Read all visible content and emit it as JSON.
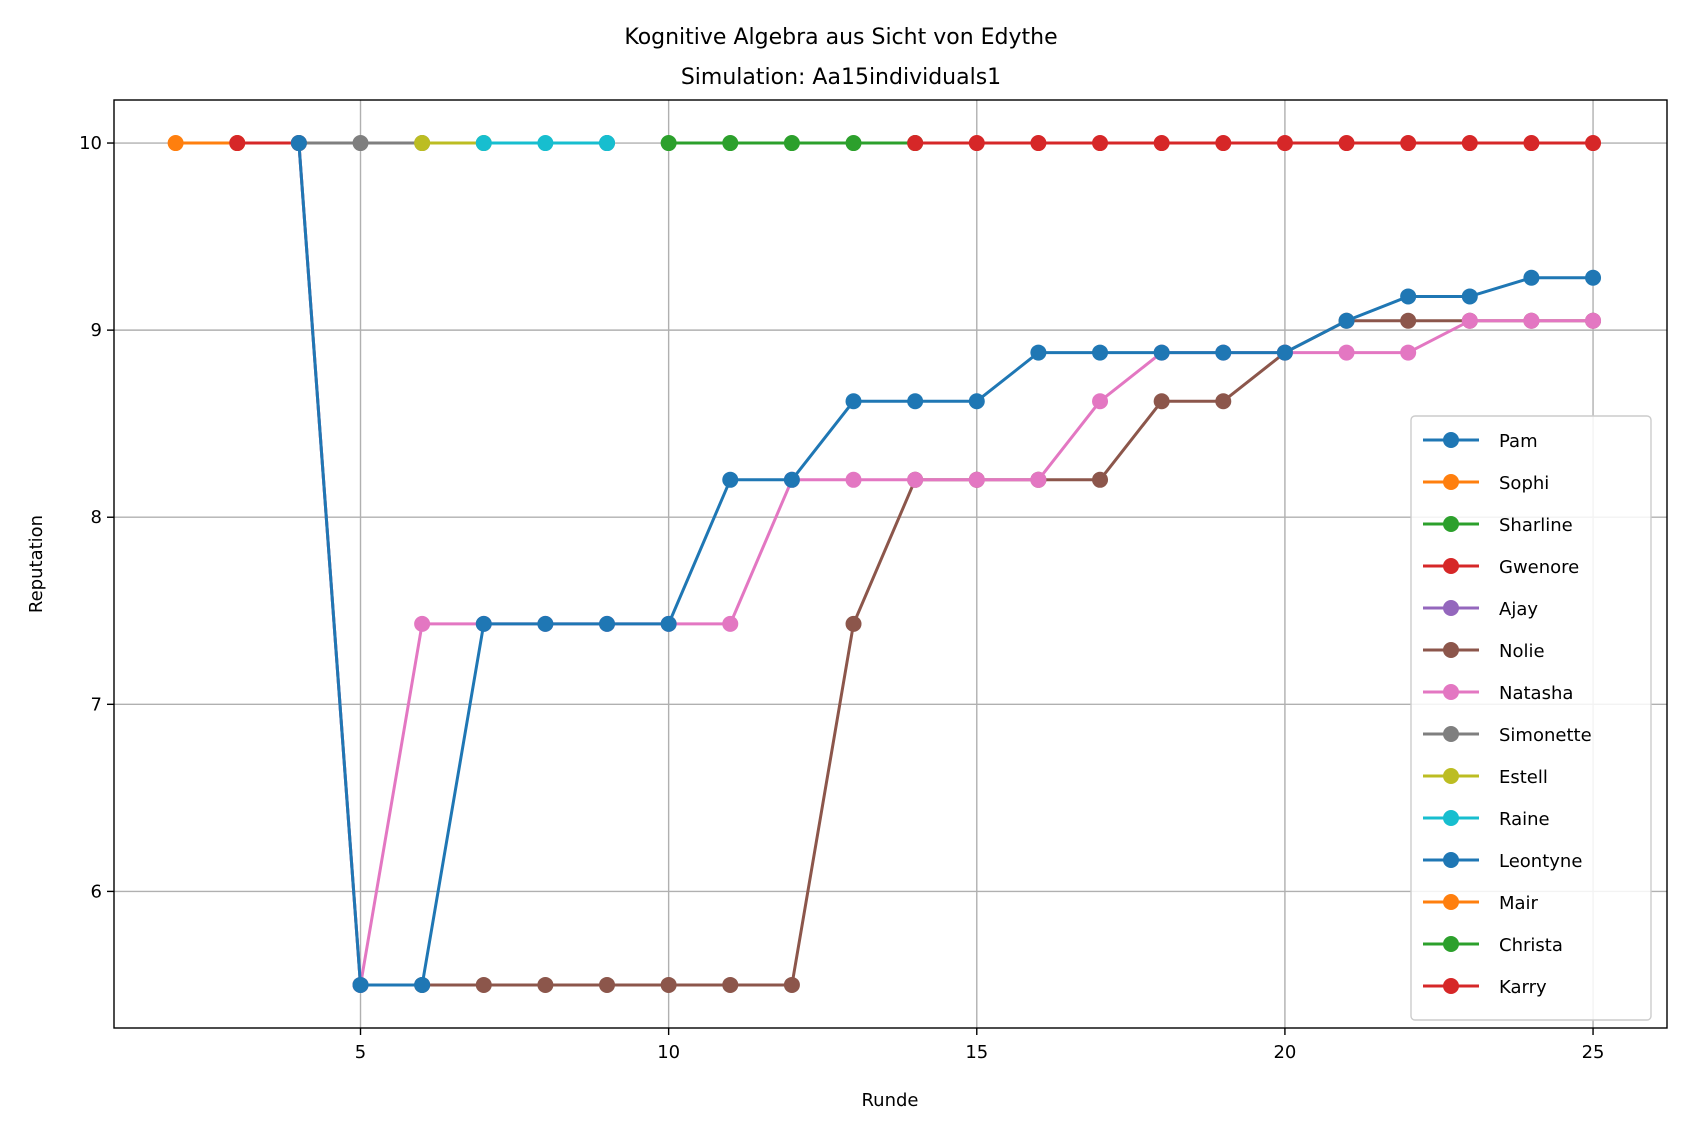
{
  "chart_data": {
    "type": "line",
    "title": "Kognitive Algebra aus Sicht von Edythe",
    "subtitle": "Simulation: Aa15individuals1",
    "xlabel": "Runde",
    "ylabel": "Reputation",
    "xlim": [
      1,
      26.2
    ],
    "ylim": [
      5.27,
      10.23
    ],
    "xticks": [
      5,
      10,
      15,
      20,
      25
    ],
    "yticks": [
      6,
      7,
      8,
      9,
      10
    ],
    "grid": true,
    "legend_position": "right",
    "series": [
      {
        "name": "Pam",
        "color": "#1f77b4",
        "x": [
          9
        ],
        "y": [
          10
        ]
      },
      {
        "name": "Sophi",
        "color": "#ff7f0e",
        "x": [
          2,
          3
        ],
        "y": [
          10,
          10
        ]
      },
      {
        "name": "Sharline",
        "color": "#2ca02c",
        "x": [
          10,
          11,
          12,
          13,
          14
        ],
        "y": [
          10,
          10,
          10,
          10,
          10
        ]
      },
      {
        "name": "Gwenore",
        "color": "#d62728",
        "x": [
          3,
          4
        ],
        "y": [
          10,
          10
        ]
      },
      {
        "name": "Ajay",
        "color": "#9467bd",
        "x": [],
        "y": []
      },
      {
        "name": "Nolie",
        "color": "#8c564b",
        "x": [
          4,
          5,
          6,
          7,
          8,
          9,
          10,
          11,
          12,
          13,
          14,
          15,
          16,
          17,
          18,
          19,
          20,
          21,
          22,
          23,
          24,
          25
        ],
        "y": [
          10,
          5.5,
          5.5,
          5.5,
          5.5,
          5.5,
          5.5,
          5.5,
          5.5,
          7.43,
          8.2,
          8.2,
          8.2,
          8.2,
          8.62,
          8.62,
          8.88,
          9.05,
          9.05,
          9.05,
          9.05,
          9.05
        ]
      },
      {
        "name": "Natasha",
        "color": "#e377c2",
        "x": [
          4,
          5,
          6,
          7,
          8,
          9,
          10,
          11,
          12,
          13,
          14,
          15,
          16,
          17,
          18,
          19,
          20,
          21,
          22,
          23,
          24,
          25
        ],
        "y": [
          10,
          5.5,
          7.43,
          7.43,
          7.43,
          7.43,
          7.43,
          7.43,
          8.2,
          8.2,
          8.2,
          8.2,
          8.2,
          8.62,
          8.88,
          8.88,
          8.88,
          8.88,
          8.88,
          9.05,
          9.05,
          9.05
        ]
      },
      {
        "name": "Simonette",
        "color": "#7f7f7f",
        "x": [
          4,
          5,
          6
        ],
        "y": [
          10,
          10,
          10
        ]
      },
      {
        "name": "Estell",
        "color": "#bcbd22",
        "x": [
          6,
          7
        ],
        "y": [
          10,
          10
        ]
      },
      {
        "name": "Raine",
        "color": "#17becf",
        "x": [
          7,
          8,
          9
        ],
        "y": [
          10,
          10,
          10
        ]
      },
      {
        "name": "Leontyne",
        "color": "#1f77b4",
        "x": [
          4,
          5,
          6,
          7,
          8,
          9,
          10,
          11,
          12,
          13,
          14,
          15,
          16,
          17,
          18,
          19,
          20,
          21,
          22,
          23,
          24,
          25
        ],
        "y": [
          10,
          5.5,
          5.5,
          7.43,
          7.43,
          7.43,
          7.43,
          8.2,
          8.2,
          8.62,
          8.62,
          8.62,
          8.88,
          8.88,
          8.88,
          8.88,
          8.88,
          9.05,
          9.18,
          9.18,
          9.28,
          9.28
        ]
      },
      {
        "name": "Mair",
        "color": "#ff7f0e",
        "x": [],
        "y": []
      },
      {
        "name": "Christa",
        "color": "#2ca02c",
        "x": [],
        "y": []
      },
      {
        "name": "Karry",
        "color": "#d62728",
        "x": [
          14,
          15,
          16,
          17,
          18,
          19,
          20,
          21,
          22,
          23,
          24,
          25
        ],
        "y": [
          10,
          10,
          10,
          10,
          10,
          10,
          10,
          10,
          10,
          10,
          10,
          10
        ]
      }
    ]
  }
}
